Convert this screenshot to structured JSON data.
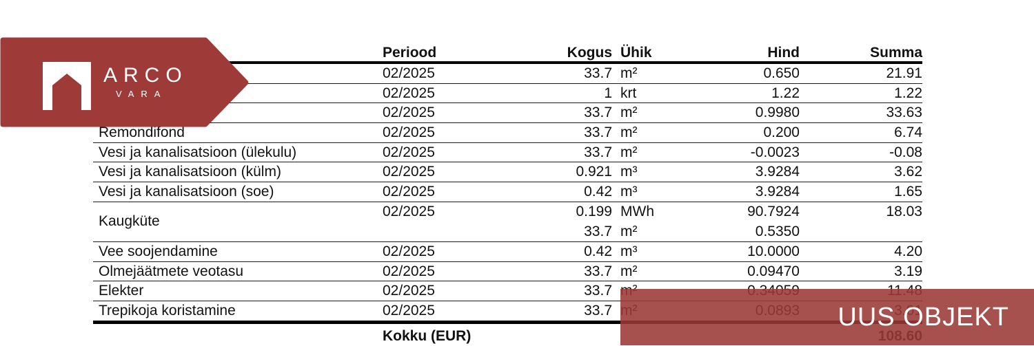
{
  "colors": {
    "brand_red": "#9e3b38"
  },
  "logo": {
    "brand_top": "ARCO",
    "brand_bottom": "VARA"
  },
  "banner": {
    "label": "UUS OBJEKT"
  },
  "table": {
    "headers": [
      "",
      "Periood",
      "Kogus",
      "Ühik",
      "Hind",
      "Summa"
    ],
    "rows": [
      {
        "name": "",
        "lines": [
          {
            "periood": "02/2025",
            "kogus": "33.7",
            "yhik": "m²",
            "hind": "0.650",
            "summa": "21.91"
          }
        ]
      },
      {
        "name": "",
        "lines": [
          {
            "periood": "02/2025",
            "kogus": "1",
            "yhik": "krt",
            "hind": "1.22",
            "summa": "1.22"
          }
        ]
      },
      {
        "name": "",
        "lines": [
          {
            "periood": "02/2025",
            "kogus": "33.7",
            "yhik": "m²",
            "hind": "0.9980",
            "summa": "33.63"
          }
        ]
      },
      {
        "name": "Remondifond",
        "lines": [
          {
            "periood": "02/2025",
            "kogus": "33.7",
            "yhik": "m²",
            "hind": "0.200",
            "summa": "6.74"
          }
        ]
      },
      {
        "name": "Vesi ja kanalisatsioon (ülekulu)",
        "lines": [
          {
            "periood": "02/2025",
            "kogus": "33.7",
            "yhik": "m²",
            "hind": "-0.0023",
            "summa": "-0.08"
          }
        ]
      },
      {
        "name": "Vesi ja kanalisatsioon (külm)",
        "lines": [
          {
            "periood": "02/2025",
            "kogus": "0.921",
            "yhik": "m³",
            "hind": "3.9284",
            "summa": "3.62"
          }
        ]
      },
      {
        "name": "Vesi ja kanalisatsioon (soe)",
        "lines": [
          {
            "periood": "02/2025",
            "kogus": "0.42",
            "yhik": "m³",
            "hind": "3.9284",
            "summa": "1.65"
          }
        ]
      },
      {
        "name": "Kaugküte",
        "lines": [
          {
            "periood": "02/2025",
            "kogus": "0.199",
            "yhik": "MWh",
            "hind": "90.7924",
            "summa": "18.03"
          },
          {
            "periood": "",
            "kogus": "33.7",
            "yhik": "m²",
            "hind": "0.5350",
            "summa": ""
          }
        ]
      },
      {
        "name": "Vee soojendamine",
        "lines": [
          {
            "periood": "02/2025",
            "kogus": "0.42",
            "yhik": "m³",
            "hind": "10.0000",
            "summa": "4.20"
          }
        ]
      },
      {
        "name": "Olmejäätmete veotasu",
        "lines": [
          {
            "periood": "02/2025",
            "kogus": "33.7",
            "yhik": "m²",
            "hind": "0.09470",
            "summa": "3.19"
          }
        ]
      },
      {
        "name": "Elekter",
        "lines": [
          {
            "periood": "02/2025",
            "kogus": "33.7",
            "yhik": "m²",
            "hind": "0.34059",
            "summa": "11.48"
          }
        ]
      },
      {
        "name": "Trepikoja koristamine",
        "lines": [
          {
            "periood": "02/2025",
            "kogus": "33.7",
            "yhik": "m²",
            "hind": "0.0893",
            "summa": "3.01"
          }
        ],
        "thick_bottom": true
      }
    ],
    "footer": {
      "label": "Kokku (EUR)",
      "total": "108.60"
    }
  }
}
